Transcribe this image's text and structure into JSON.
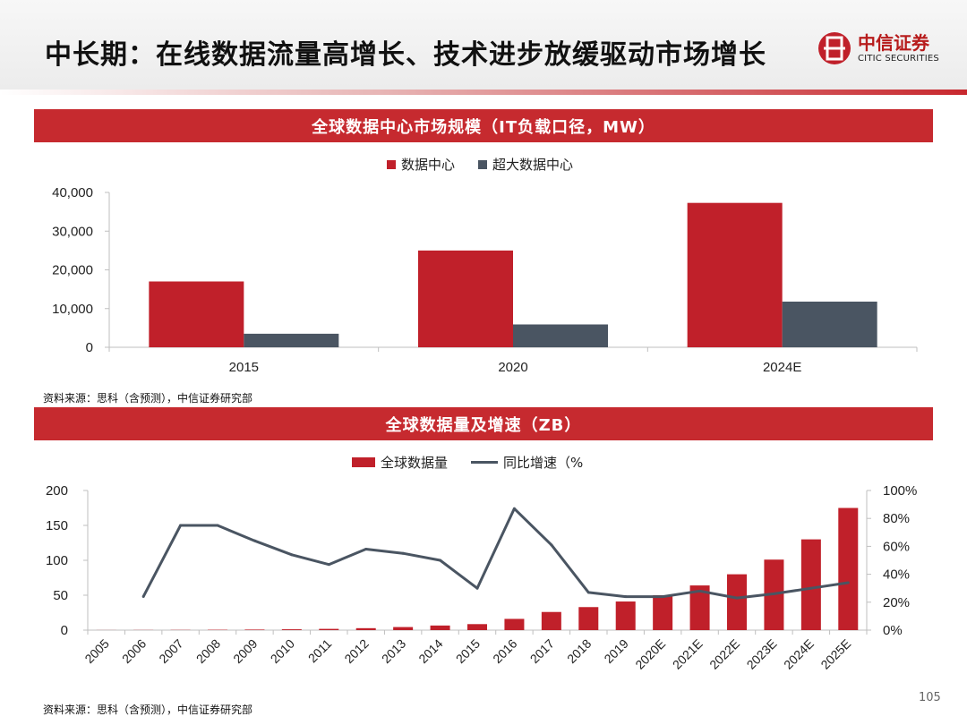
{
  "header": {
    "title": "中长期：在线数据流量高增长、技术进步放缓驱动市场增长",
    "logo_cn": "中信证券",
    "logo_en": "CITIC SECURITIES"
  },
  "colors": {
    "red": "#c0202a",
    "gray": "#4a5562",
    "banner": "#c62a2f"
  },
  "page_number": "105",
  "chart_data": [
    {
      "type": "bar",
      "title": "全球数据中心市场规模（IT负载口径，MW）",
      "categories": [
        "2015",
        "2020",
        "2024E"
      ],
      "series": [
        {
          "name": "数据中心",
          "values": [
            17000,
            25000,
            37300
          ]
        },
        {
          "name": "超大数据中心",
          "values": [
            3500,
            5900,
            11800
          ]
        }
      ],
      "ylim": [
        0,
        40000
      ],
      "yticks": [
        "0",
        "10,000",
        "20,000",
        "30,000",
        "40,000"
      ],
      "ytick_values": [
        0,
        10000,
        20000,
        30000,
        40000
      ],
      "legend_position": "top-center",
      "source": "资料来源：思科（含预测），中信证券研究部"
    },
    {
      "type": "bar+line",
      "title": "全球数据量及增速（ZB）",
      "categories": [
        "2005",
        "2006",
        "2007",
        "2008",
        "2009",
        "2010",
        "2011",
        "2012",
        "2013",
        "2014",
        "2015",
        "2016",
        "2017",
        "2018",
        "2019",
        "2020E",
        "2021E",
        "2022E",
        "2023E",
        "2024E",
        "2025E"
      ],
      "series": [
        {
          "name": "全球数据量",
          "axis": "left",
          "values": [
            0.1,
            0.2,
            0.3,
            0.5,
            0.8,
            1.2,
            1.8,
            2.8,
            4.4,
            6.6,
            8.6,
            16.1,
            26,
            33,
            41,
            50,
            64,
            80,
            101,
            130,
            175
          ]
        },
        {
          "name": "同比增速（%",
          "axis": "right",
          "values": [
            null,
            24,
            75,
            75,
            64,
            54,
            47,
            58,
            55,
            50,
            30,
            87,
            61,
            27,
            24,
            24,
            28,
            23,
            26,
            30,
            34
          ]
        }
      ],
      "ylim_left": [
        0,
        200
      ],
      "yticks_left": [
        "0",
        "50",
        "100",
        "150",
        "200"
      ],
      "ytick_values_left": [
        0,
        50,
        100,
        150,
        200
      ],
      "ylim_right": [
        0,
        100
      ],
      "yticks_right": [
        "0%",
        "20%",
        "40%",
        "60%",
        "80%",
        "100%"
      ],
      "ytick_values_right": [
        0,
        20,
        40,
        60,
        80,
        100
      ],
      "legend_position": "top-center",
      "source": "资料来源：思科（含预测），中信证券研究部"
    }
  ]
}
